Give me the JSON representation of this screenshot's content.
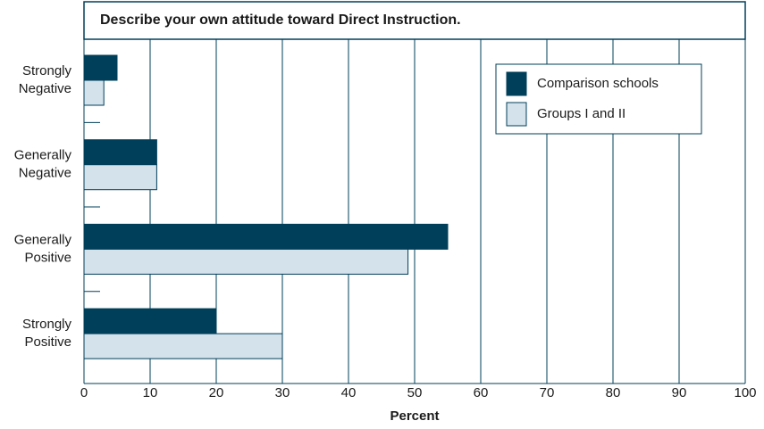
{
  "chart_data": {
    "type": "barh",
    "title": "Describe your own attitude toward Direct Instruction.",
    "xlabel": "Percent",
    "categories": [
      "Strongly Negative",
      "Generally Negative",
      "Generally Positive",
      "Strongly Positive"
    ],
    "series": [
      {
        "name": "Comparison schools",
        "color": "#003f5a",
        "values": [
          5,
          11,
          55,
          20
        ]
      },
      {
        "name": "Groups I and II",
        "color": "#d3e2eb",
        "values": [
          3,
          11,
          49,
          30
        ]
      }
    ],
    "xlim": [
      0,
      100
    ],
    "xticks": [
      0,
      10,
      20,
      30,
      40,
      50,
      60,
      70,
      80,
      90,
      100
    ],
    "grid": true,
    "legend": "upper right"
  }
}
